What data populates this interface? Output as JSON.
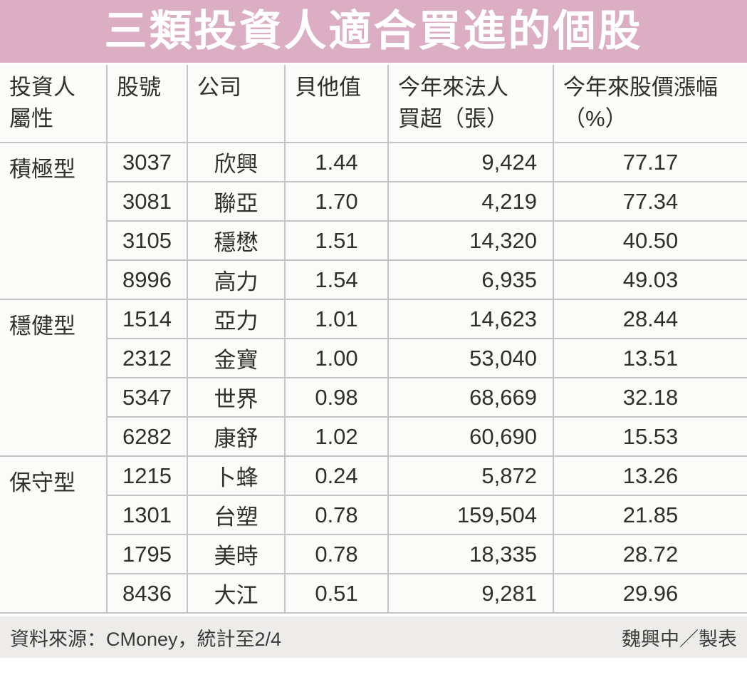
{
  "title": "三類投資人適合買進的個股",
  "colors": {
    "banner_pink": "#dbaec4",
    "grid_border": "#c4c4c4",
    "footer_bar_bg": "#edeceb",
    "text_dark": "#2f2f2d",
    "title_text": "#ffffff"
  },
  "table": {
    "headers": [
      "投資人\n屬性",
      "股號",
      "公司",
      "貝他值",
      "今年來法人\n買超（張）",
      "今年來股價漲幅\n（%）"
    ]
  },
  "chart_data": {
    "type": "table",
    "title": "三類投資人適合買進的個股",
    "columns": [
      "投資人屬性",
      "股號",
      "公司",
      "貝他值",
      "今年來法人買超（張）",
      "今年來股價漲幅（%）"
    ],
    "groups": [
      {
        "type": "積極型",
        "rows": [
          [
            "3037",
            "欣興",
            "1.44",
            "9,424",
            "77.17"
          ],
          [
            "3081",
            "聯亞",
            "1.70",
            "4,219",
            "77.34"
          ],
          [
            "3105",
            "穩懋",
            "1.51",
            "14,320",
            "40.50"
          ],
          [
            "8996",
            "高力",
            "1.54",
            "6,935",
            "49.03"
          ]
        ]
      },
      {
        "type": "穩健型",
        "rows": [
          [
            "1514",
            "亞力",
            "1.01",
            "14,623",
            "28.44"
          ],
          [
            "2312",
            "金寶",
            "1.00",
            "53,040",
            "13.51"
          ],
          [
            "5347",
            "世界",
            "0.98",
            "68,669",
            "32.18"
          ],
          [
            "6282",
            "康舒",
            "1.02",
            "60,690",
            "15.53"
          ]
        ]
      },
      {
        "type": "保守型",
        "rows": [
          [
            "1215",
            "卜蜂",
            "0.24",
            "5,872",
            "13.26"
          ],
          [
            "1301",
            "台塑",
            "0.78",
            "159,504",
            "21.85"
          ],
          [
            "1795",
            "美時",
            "0.78",
            "18,335",
            "28.72"
          ],
          [
            "8436",
            "大江",
            "0.51",
            "9,281",
            "29.96"
          ]
        ]
      }
    ]
  },
  "footer": {
    "source": "資料來源：CMoney，統計至2/4",
    "credit": "魏興中／製表"
  }
}
